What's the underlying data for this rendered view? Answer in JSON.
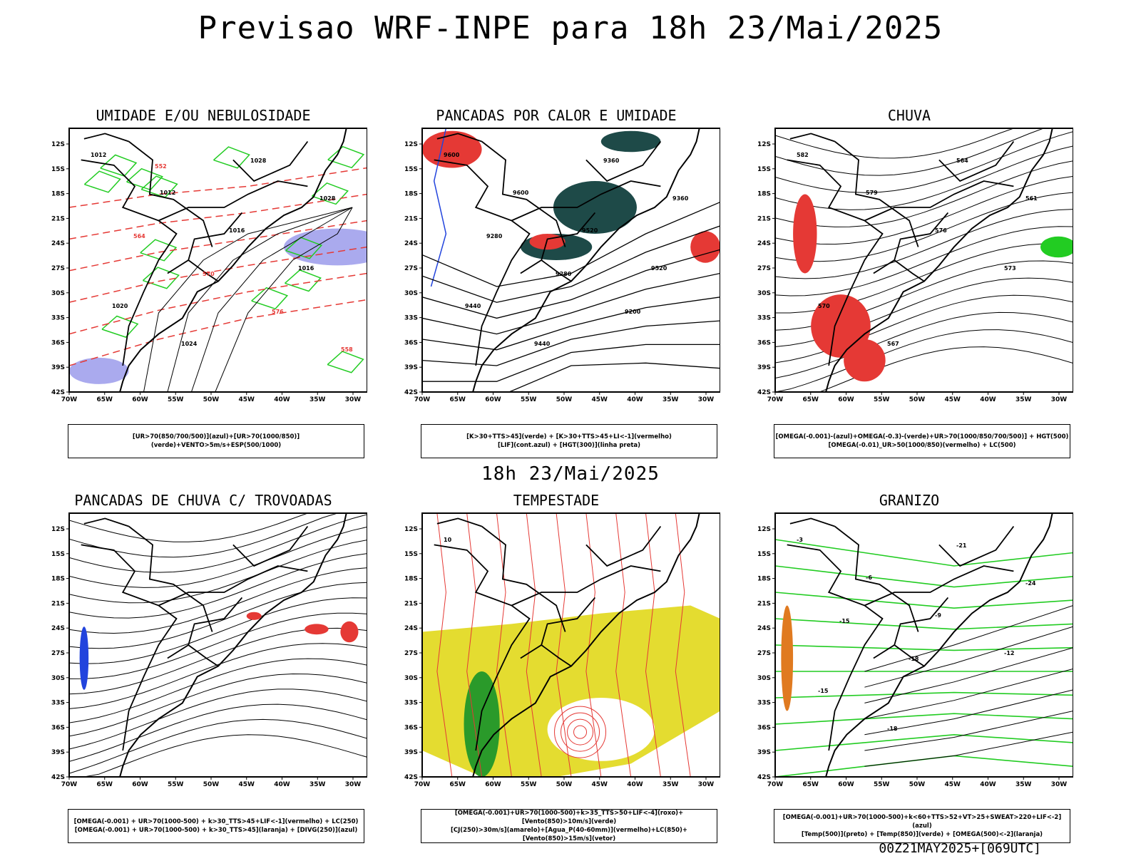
{
  "header": {
    "title": "Previsao WRF-INPE  para 18h 23/Mai/2025"
  },
  "subheader": {
    "valid_time": "18h 23/Mai/2025"
  },
  "footer": {
    "run_info": "00Z21MAY2025+[069UTC]"
  },
  "axes": {
    "lat_labels": [
      "12S",
      "15S",
      "18S",
      "21S",
      "24S",
      "27S",
      "30S",
      "33S",
      "36S",
      "39S",
      "42S"
    ],
    "lon_labels": [
      "70W",
      "65W",
      "60W",
      "55W",
      "50W",
      "45W",
      "40W",
      "35W",
      "30W"
    ]
  },
  "colors": {
    "red": "#e53935",
    "green": "#22cc22",
    "blue": "#2244dd",
    "lavender": "#aaaaee",
    "darkteal": "#1e4a48",
    "yellow": "#e4dc30",
    "orange": "#e07a20"
  },
  "panels": [
    {
      "id": "umidade",
      "title": "UMIDADE E/OU NEBULOSIDADE",
      "legend": [
        "[UR>70(850/700/500)](azul)+[UR>70(1000/850)](verde)+VENTO>5m/s+ESP(500/1000)"
      ],
      "contour_labels": [
        "1012",
        "1012",
        "1016",
        "1016",
        "1020",
        "1024",
        "1028",
        "1028",
        "564",
        "570",
        "576",
        "558",
        "552"
      ]
    },
    {
      "id": "pancadas_calor",
      "title": "PANCADAS POR CALOR E UMIDADE",
      "legend": [
        "[K>30+TTS>45](verde) + [K>30+TTS>45+LI<-1](vermelho)",
        "[LIF](cont.azul) + [HGT(300)](linha preta)"
      ],
      "contour_labels": [
        "9600",
        "9600",
        "9520",
        "9520",
        "9440",
        "9440",
        "9360",
        "9360",
        "9280",
        "9280",
        "9200"
      ]
    },
    {
      "id": "chuva",
      "title": "CHUVA",
      "legend": [
        "[OMEGA(-0.001)-(azul)+OMEGA(-0.3)-(verde)+UR>70(1000/850/700/500)] + HGT(500)",
        "[OMEGA(-0.01)_UR>50(1000/850)(vermelho) + LC(500)"
      ],
      "contour_labels": [
        "582",
        "579",
        "576",
        "573",
        "570",
        "567",
        "564",
        "561"
      ]
    },
    {
      "id": "trovoadas",
      "title": "PANCADAS DE CHUVA C/ TROVOADAS",
      "legend": [
        "[OMEGA(-0.001) + UR>70(1000-500) + k>30_TTS>45+LIF<-1](vermelho) + LC(250)",
        "[OMEGA(-0.001) + UR>70(1000-500) + k>30_TTS>45](laranja) + [DIVG(250)](azul)"
      ],
      "contour_labels": []
    },
    {
      "id": "tempestade",
      "title": "TEMPESTADE",
      "legend": [
        "[OMEGA(-0.001)+UR>70(1000-500)+k>35_TTS>50+LIF<-4](roxo)+[Vento(850)>10m/s](verde)",
        "[CJ(250)>30m/s](amarelo)+[Agua_P(40-60mm)](vermelho)+LC(850)+[Vento(850)>15m/s](vetor)"
      ],
      "contour_labels": [
        "10"
      ]
    },
    {
      "id": "granizo",
      "title": "GRANIZO",
      "legend": [
        "[OMEGA(-0.001)+UR>70(1000-500)+k<60+TTS>52+VT>25+SWEAT>220+LIF<-2](azul)",
        "[Temp(500)](preto) + [Temp(850)](verde) + [OMEGA(500)<-2](laranja)"
      ],
      "contour_labels": [
        "-3",
        "-6",
        "-9",
        "-12",
        "-15",
        "-18",
        "-21",
        "-24",
        "-15",
        "-18"
      ]
    }
  ]
}
